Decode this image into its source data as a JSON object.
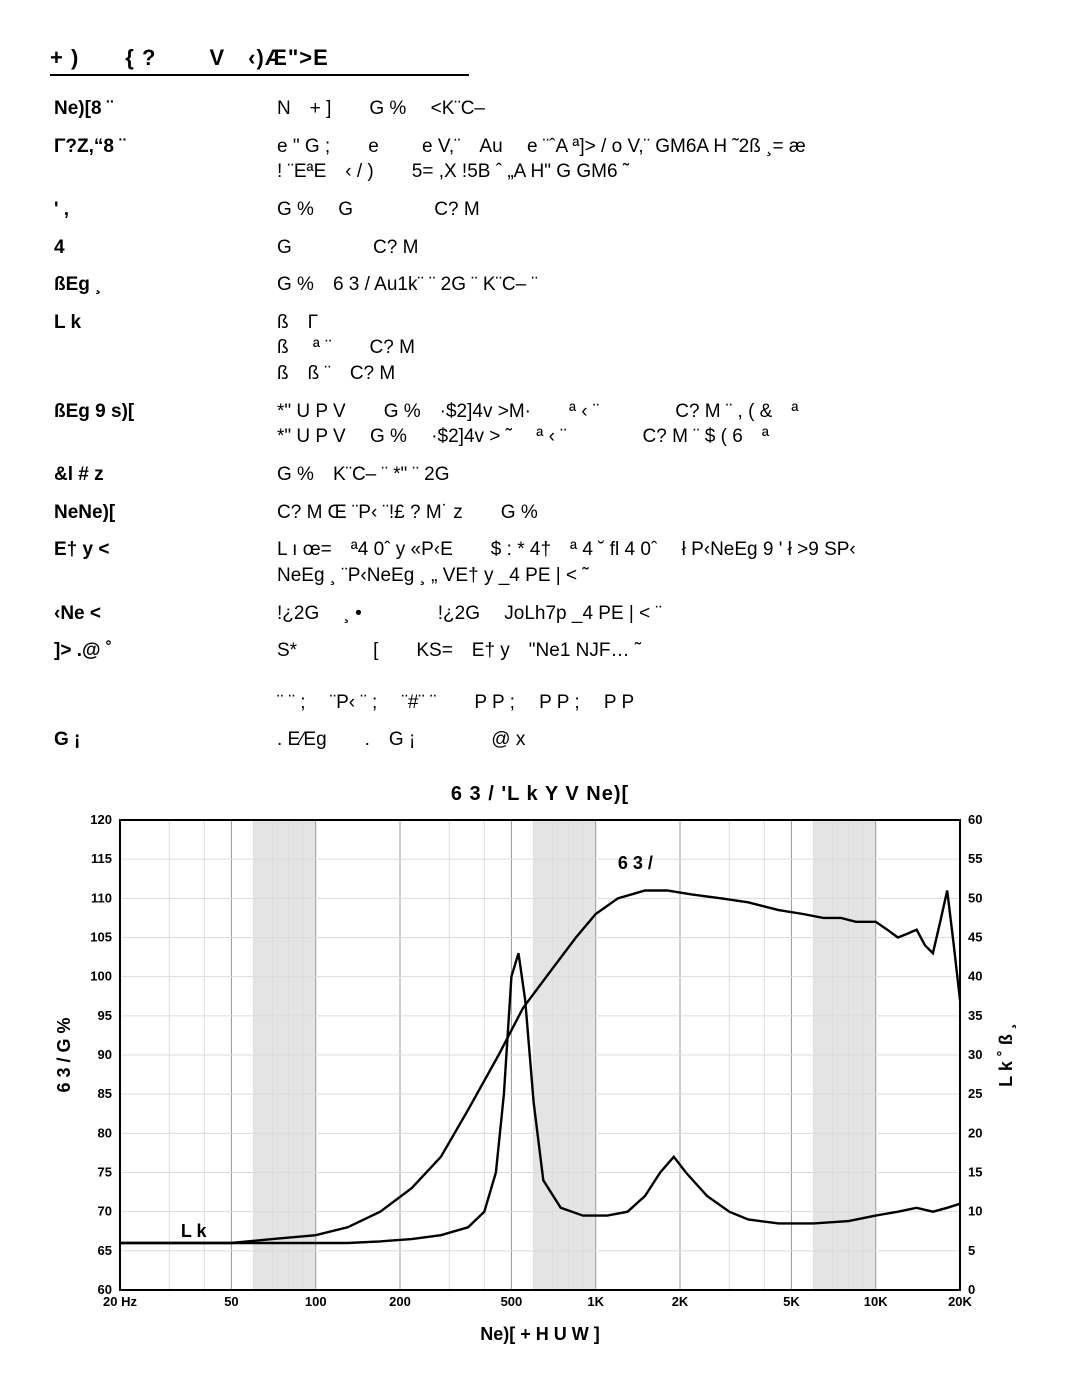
{
  "title": "+ )　　{  ?　　 V　‹)Æ\">E",
  "rows": [
    {
      "label": "Ne)[8 ¨",
      "value": "N　+ ]　　G %　 <K¨C–"
    },
    {
      "label": "Γ?Z,“8 ¨",
      "value": "e \" G ;　　e 　　e V,¨　Au　 e ¨ˆA ª]> / o V,¨ GM6A H ˜2ß ¸= æ\n! ¨EªE　‹ / )　　5=  ,X !5B ˆ „A H\" G GM6 ˜"
    },
    {
      "label": "' ,",
      "value": "G %　 G 　　　　C? M"
    },
    {
      "label": "4",
      "value": "G 　　　　C? M"
    },
    {
      "label": "ßEg ¸",
      "value": "G %　6 3 / Au1k¨ ¨   2G ¨  K¨C– ¨"
    },
    {
      "label": "L k",
      "value": "ß　Γ\nß　 ª ¨　　C? M\nß　ß ¨　C? M"
    },
    {
      "label": "ßEg 9 s)[",
      "value": "*\"  U P V　　G %　·$2]4v >M·　　ª ‹ ¨　　　　C? M ¨ , ( &　ª\n*\"  U P V　 G %　 ·$2]4v > ˜　 ª ‹ ¨　　　　C? M ¨  $ ( 6　ª"
    },
    {
      "label": "&l # z",
      "value": "G %　K¨C– ¨  *\" ¨   2G"
    },
    {
      "label": "NeNe)[",
      "value": "C? M Œ ¨P‹ ¨!£ ?  M˙ z　　G %"
    },
    {
      "label": "E† y <",
      "value": "L ı œ=　ª4 0ˆ y «P‹E　　$ : * 4†　ª  4 ˘ fl 4 0ˆ　 ł P‹NeEg 9 ' ł  >9 SP‹\nNeEg ¸ ¨P‹NeEg ¸ „ VE† y  _4 PE | < ˜"
    },
    {
      "label": "‹Ne <",
      "value": "!¿2G　 ¸ •　　　　!¿2G　 JoLh7p  _4 PE | < ¨"
    },
    {
      "label": "]> .@ ˚",
      "value": "S*　　　　[　　KS=　E† y　\"Ne1 NJF… ˜\n\n ¨ ¨ ;　 ¨P‹ ¨ ;　 ¨#¨ ¨　　P P ;　 P P ;　 P P"
    },
    {
      "label": "G ¡",
      "value": ".  E⁄Eg　　.　G ¡　　　　@ x"
    }
  ],
  "chart": {
    "title": "6 3 /  'L k  Y V  Ne)[",
    "xlabel": "Ne)[   + H U W ]",
    "ylabel_left": "6 3 /  G %",
    "ylabel_right": "L k ˚ ß ¸",
    "x_ticks": [
      20,
      50,
      100,
      200,
      500,
      1000,
      2000,
      5000,
      10000,
      20000
    ],
    "x_ticklabels": [
      "20 Hz",
      "50",
      "100",
      "200",
      "500",
      "1K",
      "2K",
      "5K",
      "10K",
      "20K"
    ],
    "y_left_min": 60,
    "y_left_max": 120,
    "y_left_step": 5,
    "y_right_min": 0,
    "y_right_max": 60,
    "y_right_step": 5,
    "background": "#ffffff",
    "grid_minor": "#dcdcdc",
    "grid_major": "#9a9a9a",
    "shade": "#e4e4e4",
    "axis_color": "#000000",
    "line_color": "#000000",
    "line_width": 2.4,
    "series": {
      "spl": {
        "freq": [
          20,
          30,
          50,
          70,
          100,
          130,
          170,
          220,
          280,
          350,
          450,
          550,
          700,
          850,
          1000,
          1200,
          1500,
          1800,
          2200,
          2800,
          3500,
          4500,
          5500,
          6500,
          7500,
          8500,
          10000,
          11000,
          12000,
          13000,
          14000,
          15000,
          16000,
          17000,
          18000,
          19000,
          20000
        ],
        "db": [
          66,
          66,
          66,
          66.5,
          67,
          68,
          70,
          73,
          77,
          83,
          90,
          96,
          101,
          105,
          108,
          110,
          111,
          111,
          110.5,
          110,
          109.5,
          108.5,
          108,
          107.5,
          107.5,
          107,
          107,
          106,
          105,
          105.5,
          106,
          104,
          103,
          107,
          111,
          104,
          97
        ]
      },
      "imp": {
        "freq": [
          20,
          30,
          50,
          70,
          100,
          130,
          170,
          220,
          280,
          350,
          400,
          440,
          470,
          500,
          530,
          560,
          600,
          650,
          750,
          900,
          1100,
          1300,
          1500,
          1700,
          1900,
          2100,
          2500,
          3000,
          3500,
          4500,
          6000,
          8000,
          10000,
          12000,
          14000,
          16000,
          18000,
          20000
        ],
        "ohm": [
          6,
          6,
          6,
          6,
          6,
          6,
          6.2,
          6.5,
          7,
          8,
          10,
          15,
          25,
          40,
          43,
          37,
          24,
          14,
          10.5,
          9.5,
          9.5,
          10,
          12,
          15,
          17,
          15,
          12,
          10,
          9,
          8.5,
          8.5,
          8.8,
          9.5,
          10,
          10.5,
          10,
          10.5,
          11
        ]
      },
      "legend_spl": "6 3 /",
      "legend_imp": "L k"
    }
  }
}
